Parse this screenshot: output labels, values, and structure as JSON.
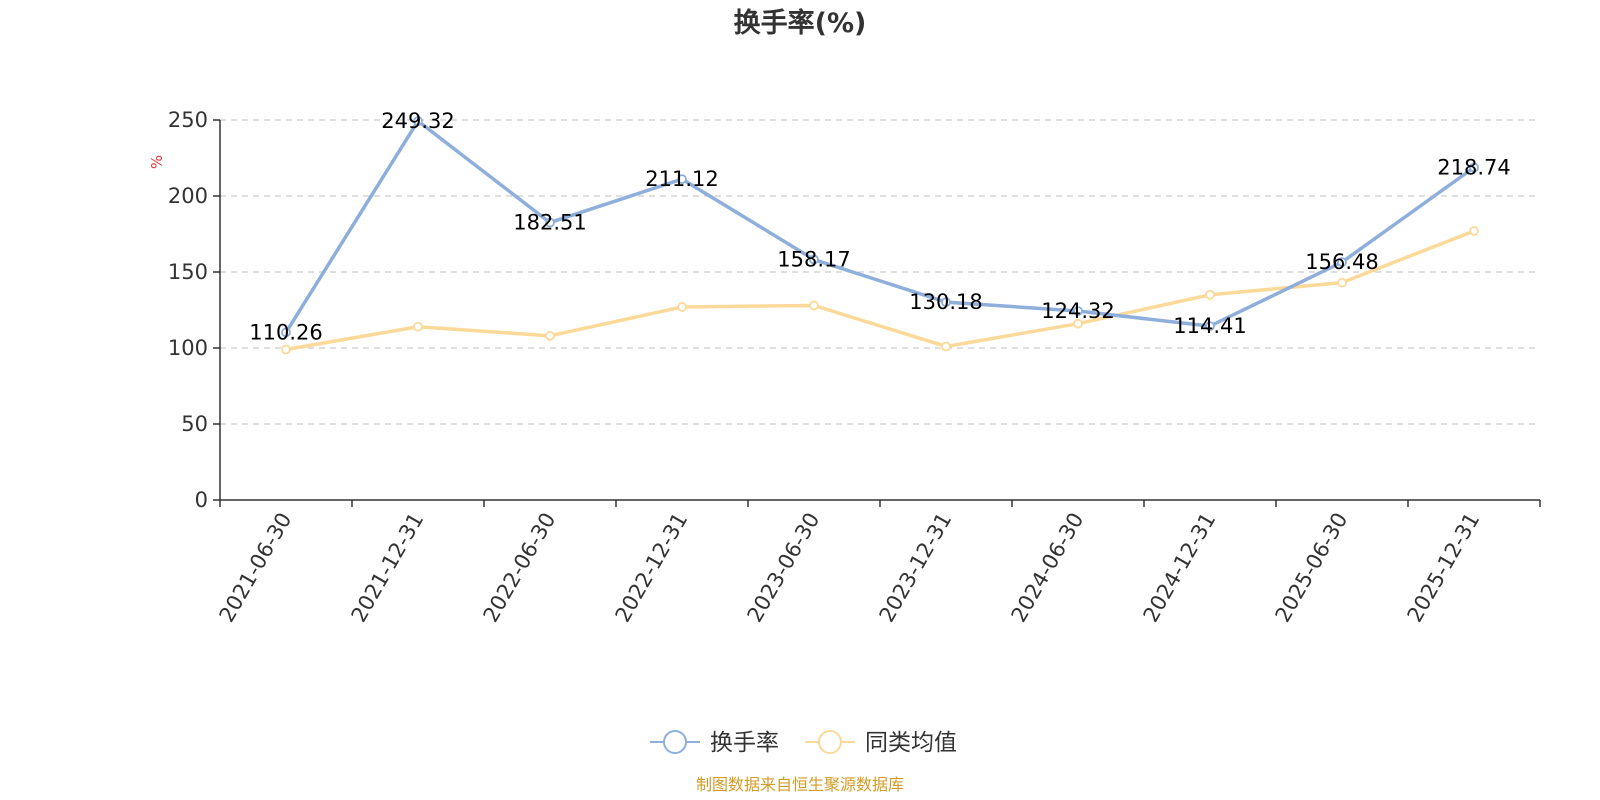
{
  "chart_data": {
    "type": "line",
    "title": "换手率(%)",
    "ylabel": "%",
    "xlabel": "",
    "ylim": [
      0,
      250
    ],
    "yticks": [
      0,
      50,
      100,
      150,
      200,
      250
    ],
    "grid": true,
    "legend_position": "bottom-center",
    "categories": [
      "2021-06-30",
      "2021-12-31",
      "2022-06-30",
      "2022-12-31",
      "2023-06-30",
      "2023-12-31",
      "2024-06-30",
      "2024-12-31",
      "2025-06-30",
      "2025-12-31"
    ],
    "series": [
      {
        "name": "换手率",
        "color": "#8eaedb",
        "values": [
          110.26,
          249.32,
          182.51,
          211.12,
          158.17,
          130.18,
          124.32,
          114.41,
          156.48,
          218.74
        ],
        "labels": [
          "110.26",
          "249.32",
          "182.51",
          "211.12",
          "158.17",
          "130.18",
          "124.32",
          "114.41",
          "156.48",
          "218.74"
        ]
      },
      {
        "name": "同类均值",
        "color": "#fbd999",
        "values": [
          99,
          114,
          108,
          127,
          128,
          101,
          116,
          135,
          143,
          177
        ]
      }
    ],
    "source": "制图数据来自恒生聚源数据库",
    "source_color": "#d29c26",
    "unit_color": "#e6383a"
  }
}
